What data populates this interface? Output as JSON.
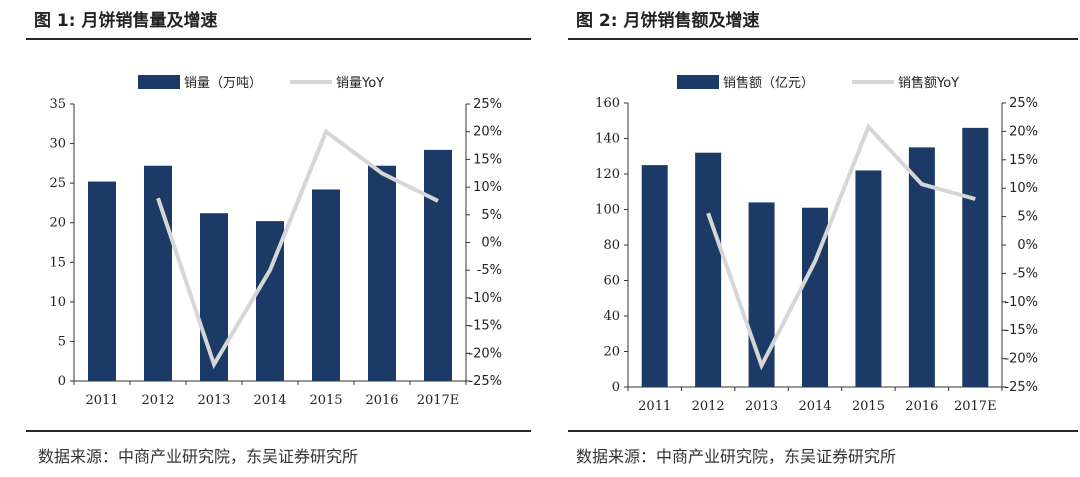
{
  "colors": {
    "bar": "#1b3a66",
    "line": "#d6d6d6",
    "axis": "#333333"
  },
  "figures": [
    {
      "title": "图 1:  月饼销售量及增速",
      "source": "数据来源：中商产业研究院，东吴证券研究所"
    },
    {
      "title": "图 2:  月饼销售额及增速",
      "source": "数据来源：中商产业研究院，东吴证券研究所"
    }
  ],
  "chart_data": [
    {
      "type": "bar",
      "categories": [
        "2011",
        "2012",
        "2013",
        "2014",
        "2015",
        "2016",
        "2017E"
      ],
      "series": [
        {
          "name": "销量（万吨）",
          "kind": "bar",
          "axis": "left",
          "values": [
            25.2,
            27.2,
            21.2,
            20.2,
            24.2,
            27.2,
            29.2
          ]
        },
        {
          "name": "销量YoY",
          "kind": "line",
          "axis": "right",
          "values": [
            null,
            8.0,
            -22.0,
            -5.0,
            20.0,
            12.5,
            7.5
          ]
        }
      ],
      "ylim": [
        0,
        35
      ],
      "yticks": [
        0,
        5,
        10,
        15,
        20,
        25,
        30,
        35
      ],
      "y2lim": [
        -25,
        25
      ],
      "y2ticks": [
        -25,
        -20,
        -15,
        -10,
        -5,
        0,
        5,
        10,
        15,
        20,
        25
      ],
      "y2_format": "percent",
      "legend": "top-center"
    },
    {
      "type": "bar",
      "categories": [
        "2011",
        "2012",
        "2013",
        "2014",
        "2015",
        "2016",
        "2017E"
      ],
      "series": [
        {
          "name": "销售额（亿元）",
          "kind": "bar",
          "axis": "left",
          "values": [
            125,
            132,
            104,
            101,
            122,
            135,
            146
          ]
        },
        {
          "name": "销售额YoY",
          "kind": "line",
          "axis": "right",
          "values": [
            null,
            5.6,
            -21.2,
            -2.9,
            20.8,
            10.7,
            8.1
          ]
        }
      ],
      "ylim": [
        0,
        160
      ],
      "yticks": [
        0,
        20,
        40,
        60,
        80,
        100,
        120,
        140,
        160
      ],
      "y2lim": [
        -25,
        25
      ],
      "y2ticks": [
        -25,
        -20,
        -15,
        -10,
        -5,
        0,
        5,
        10,
        15,
        20,
        25
      ],
      "y2_format": "percent",
      "legend": "top-center"
    }
  ]
}
